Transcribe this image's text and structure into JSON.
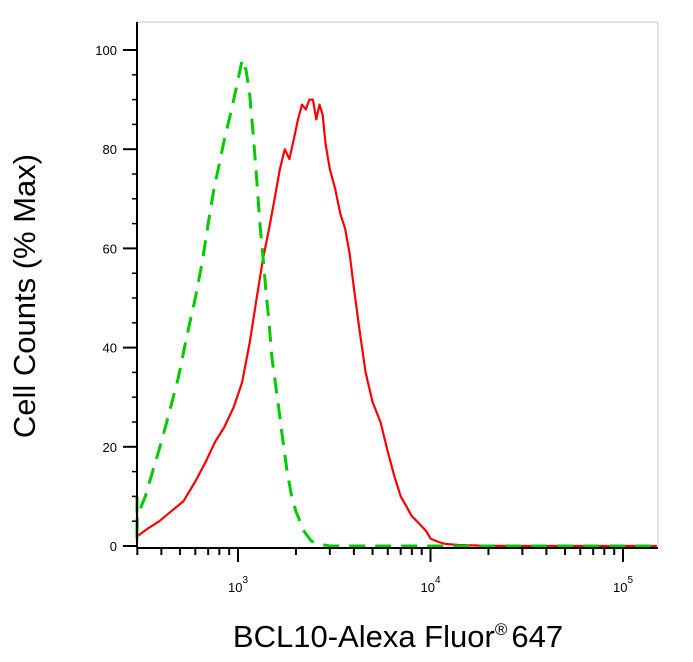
{
  "chart_data": {
    "type": "line",
    "title": "",
    "xlabel": "BCL10-Alexa Fluor",
    "xlabel_mark": "®",
    "xlabel_suffix": "647",
    "ylabel": "Cell Counts (% Max)",
    "x_scale": "log",
    "xlim": [
      200,
      150000
    ],
    "ylim": [
      0,
      104
    ],
    "grid": false,
    "legend": "none",
    "y_ticks": [
      0,
      20,
      40,
      60,
      80,
      100
    ],
    "y_tick_labels": [
      "0",
      "20",
      "40",
      "60",
      "80",
      "100"
    ],
    "x_major_ticks": [
      1000,
      10000,
      100000
    ],
    "x_tick_labels": [
      {
        "base": "10",
        "exp": "3"
      },
      {
        "base": "10",
        "exp": "4"
      },
      {
        "base": "10",
        "exp": "5"
      }
    ],
    "series": [
      {
        "color": "#ff0000",
        "dash": "solid",
        "x": [
          200,
          210,
          225,
          245,
          270,
          300,
          340,
          390,
          450,
          520,
          600,
          680,
          760,
          850,
          950,
          1050,
          1150,
          1250,
          1350,
          1450,
          1550,
          1650,
          1750,
          1850,
          1950,
          2050,
          2150,
          2250,
          2350,
          2450,
          2550,
          2650,
          2750,
          2850,
          3000,
          3200,
          3400,
          3600,
          3800,
          4000,
          4300,
          4600,
          5000,
          5500,
          6000,
          6500,
          7000,
          7500,
          8000,
          8500,
          9000,
          9500,
          10000,
          11000,
          12000,
          14000,
          17000,
          25000,
          50000,
          100000,
          150000
        ],
        "y": [
          10,
          6,
          2,
          0.5,
          1,
          2,
          3.5,
          5,
          7,
          9,
          13,
          17,
          21,
          24,
          28,
          33,
          41,
          50,
          58,
          64,
          70,
          76,
          80,
          78,
          82,
          86,
          89,
          88,
          90,
          90,
          86,
          89,
          87,
          81,
          76,
          72,
          67,
          64,
          59,
          52,
          43,
          35,
          29,
          25,
          19,
          14,
          10,
          8,
          6,
          5,
          4,
          3,
          1.5,
          0.8,
          0.4,
          0.2,
          0.1,
          0,
          0,
          0,
          0
        ]
      },
      {
        "color": "#00cc00",
        "dash": "dashed",
        "x": [
          200,
          210,
          225,
          245,
          270,
          300,
          330,
          360,
          400,
          440,
          490,
          540,
          600,
          650,
          700,
          750,
          800,
          850,
          900,
          950,
          1000,
          1050,
          1100,
          1150,
          1200,
          1250,
          1300,
          1350,
          1400,
          1450,
          1500,
          1600,
          1700,
          1800,
          1900,
          2000,
          2100,
          2200,
          2300,
          2400,
          2600,
          2800,
          3000,
          4000,
          10000,
          50000,
          150000
        ],
        "y": [
          10,
          6,
          1,
          1.5,
          3,
          6,
          10,
          15,
          21,
          27,
          34,
          42,
          50,
          57,
          65,
          72,
          77,
          82,
          86,
          90,
          94,
          98,
          96,
          91,
          83,
          74,
          65,
          58,
          51,
          45,
          38,
          30,
          22,
          15,
          10,
          7,
          5,
          3,
          2,
          1,
          0.5,
          0.2,
          0,
          0,
          0,
          0,
          0
        ]
      }
    ]
  }
}
